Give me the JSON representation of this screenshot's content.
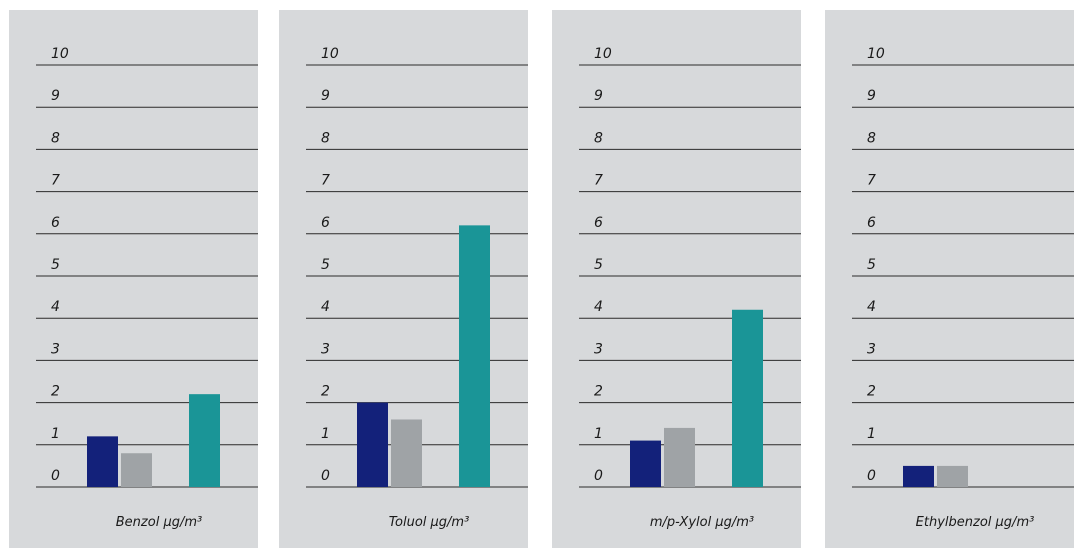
{
  "colors": {
    "panel_bg": "#d7d9db",
    "gridline": "#2b2b2b",
    "series": [
      "#13217a",
      "#9fa3a6",
      "#1a9597"
    ]
  },
  "chart_data": [
    {
      "type": "bar",
      "xlabel": "Benzol µg/m³",
      "ylim": [
        0,
        10
      ],
      "yticks": [
        "0",
        "1",
        "2",
        "3",
        "4",
        "5",
        "6",
        "7",
        "8",
        "9",
        "10"
      ],
      "grid": true,
      "values": [
        1.2,
        0.8,
        2.2
      ]
    },
    {
      "type": "bar",
      "xlabel": "Toluol µg/m³",
      "ylim": [
        0,
        10
      ],
      "yticks": [
        "0",
        "1",
        "2",
        "3",
        "4",
        "5",
        "6",
        "7",
        "8",
        "9",
        "10"
      ],
      "grid": true,
      "values": [
        2.0,
        1.6,
        6.2
      ]
    },
    {
      "type": "bar",
      "xlabel": "m/p-Xylol µg/m³",
      "ylim": [
        0,
        10
      ],
      "yticks": [
        "0",
        "1",
        "2",
        "3",
        "4",
        "5",
        "6",
        "7",
        "8",
        "9",
        "10"
      ],
      "grid": true,
      "values": [
        1.1,
        1.4,
        4.2
      ]
    },
    {
      "type": "bar",
      "xlabel": "Ethylbenzol µg/m³",
      "ylim": [
        0,
        10
      ],
      "yticks": [
        "0",
        "1",
        "2",
        "3",
        "4",
        "5",
        "6",
        "7",
        "8",
        "9",
        "10"
      ],
      "grid": true,
      "values": [
        0.5,
        0.5,
        0
      ]
    }
  ]
}
